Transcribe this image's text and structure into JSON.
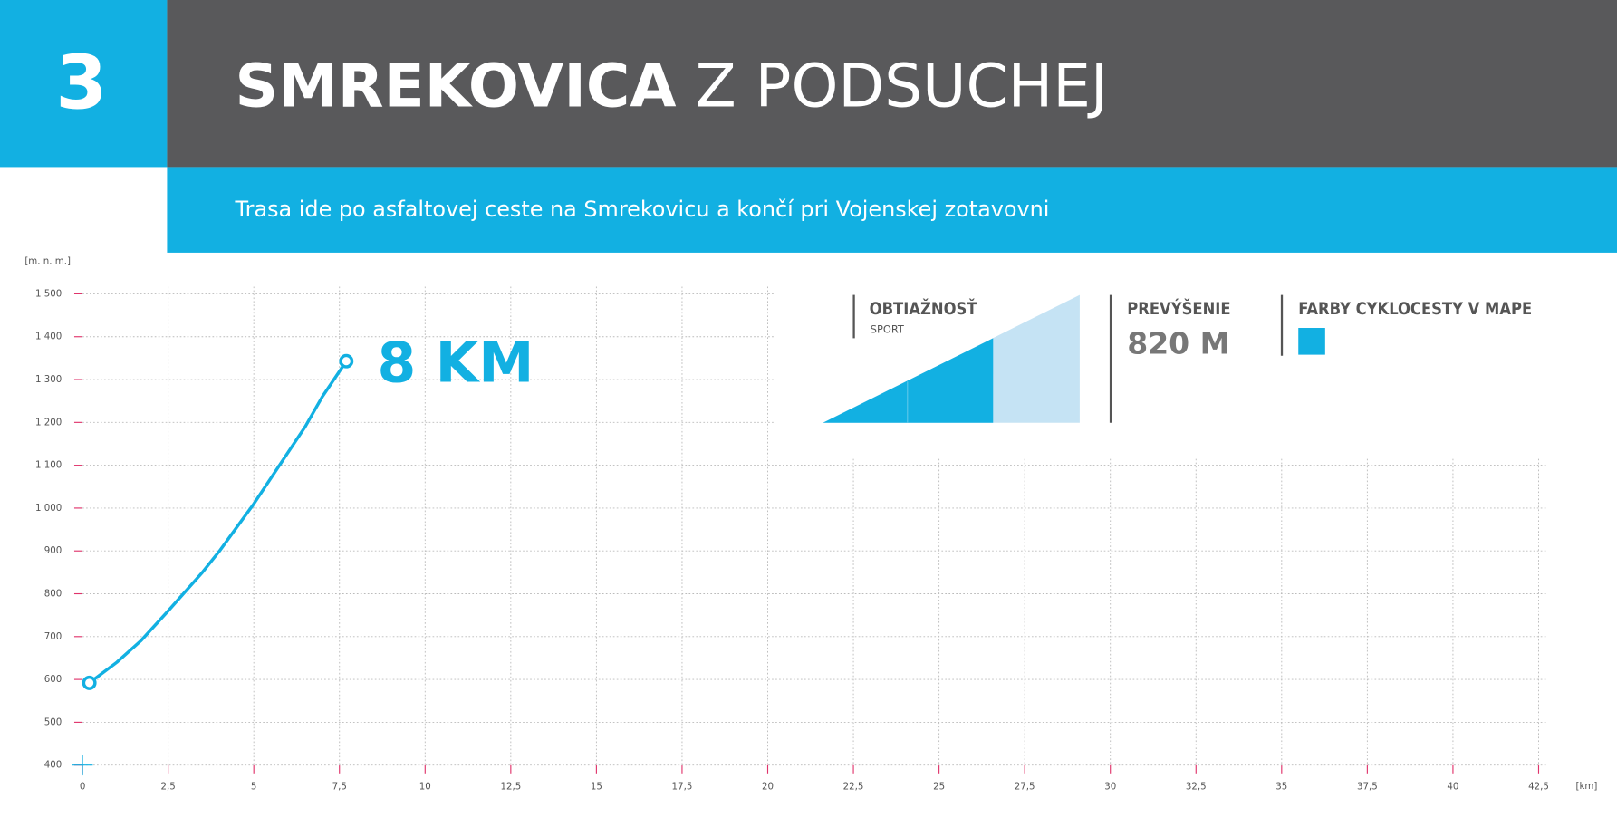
{
  "route_number": "3",
  "title_bold": "SMREKOVICA",
  "title_rest": "Z PODSUCHEJ",
  "subtitle": "Trasa ide po asfaltovej ceste na Smrekovicu a končí pri Vojenskej zotavovni",
  "info": {
    "difficulty_label": "OBTIAŽNOSŤ",
    "difficulty_value": "SPORT",
    "elevation_gain_label": "PREVÝŠENIE",
    "elevation_gain_value": "820 M",
    "color_label": "FARBY CYKLOCESTY V MAPE",
    "route_color": "#12b0e2"
  },
  "chart_data": {
    "type": "line",
    "y_label": "[m. n. m.]",
    "x_label": "[km]",
    "annotation": "8 KM",
    "x": [
      0.2,
      1,
      1.7,
      2.5,
      3.5,
      4,
      5,
      5.5,
      6,
      6.5,
      7,
      7.7
    ],
    "series": [
      {
        "color": "#12b0e2",
        "values": [
          592,
          640,
          690,
          760,
          850,
          900,
          1010,
          1070,
          1130,
          1190,
          1260,
          1343
        ]
      }
    ],
    "xlim": [
      0,
      42.5
    ],
    "ylim": [
      400,
      1500
    ],
    "xticks": [
      0,
      {
        "value": 2.5,
        "label": "2,5"
      },
      5,
      {
        "value": 7.5,
        "label": "7,5"
      },
      10,
      {
        "value": 12.5,
        "label": "12,5"
      },
      15,
      {
        "value": 17.5,
        "label": "17,5"
      },
      20,
      {
        "value": 22.5,
        "label": "22,5"
      },
      25,
      {
        "value": 27.5,
        "label": "27,5"
      },
      30,
      {
        "value": 32.5,
        "label": "32,5"
      },
      35,
      {
        "value": 37.5,
        "label": "37,5"
      },
      40,
      {
        "value": 42.5,
        "label": "42,5"
      }
    ],
    "yticks": [
      400,
      500,
      600,
      700,
      800,
      900,
      {
        "value": 1000,
        "label": "1 000"
      },
      {
        "value": 1100,
        "label": "1 100"
      },
      {
        "value": 1200,
        "label": "1 200"
      },
      {
        "value": 1300,
        "label": "1 300"
      },
      {
        "value": 1400,
        "label": "1 400"
      },
      {
        "value": 1500,
        "label": "1 500"
      }
    ],
    "grid": true
  }
}
